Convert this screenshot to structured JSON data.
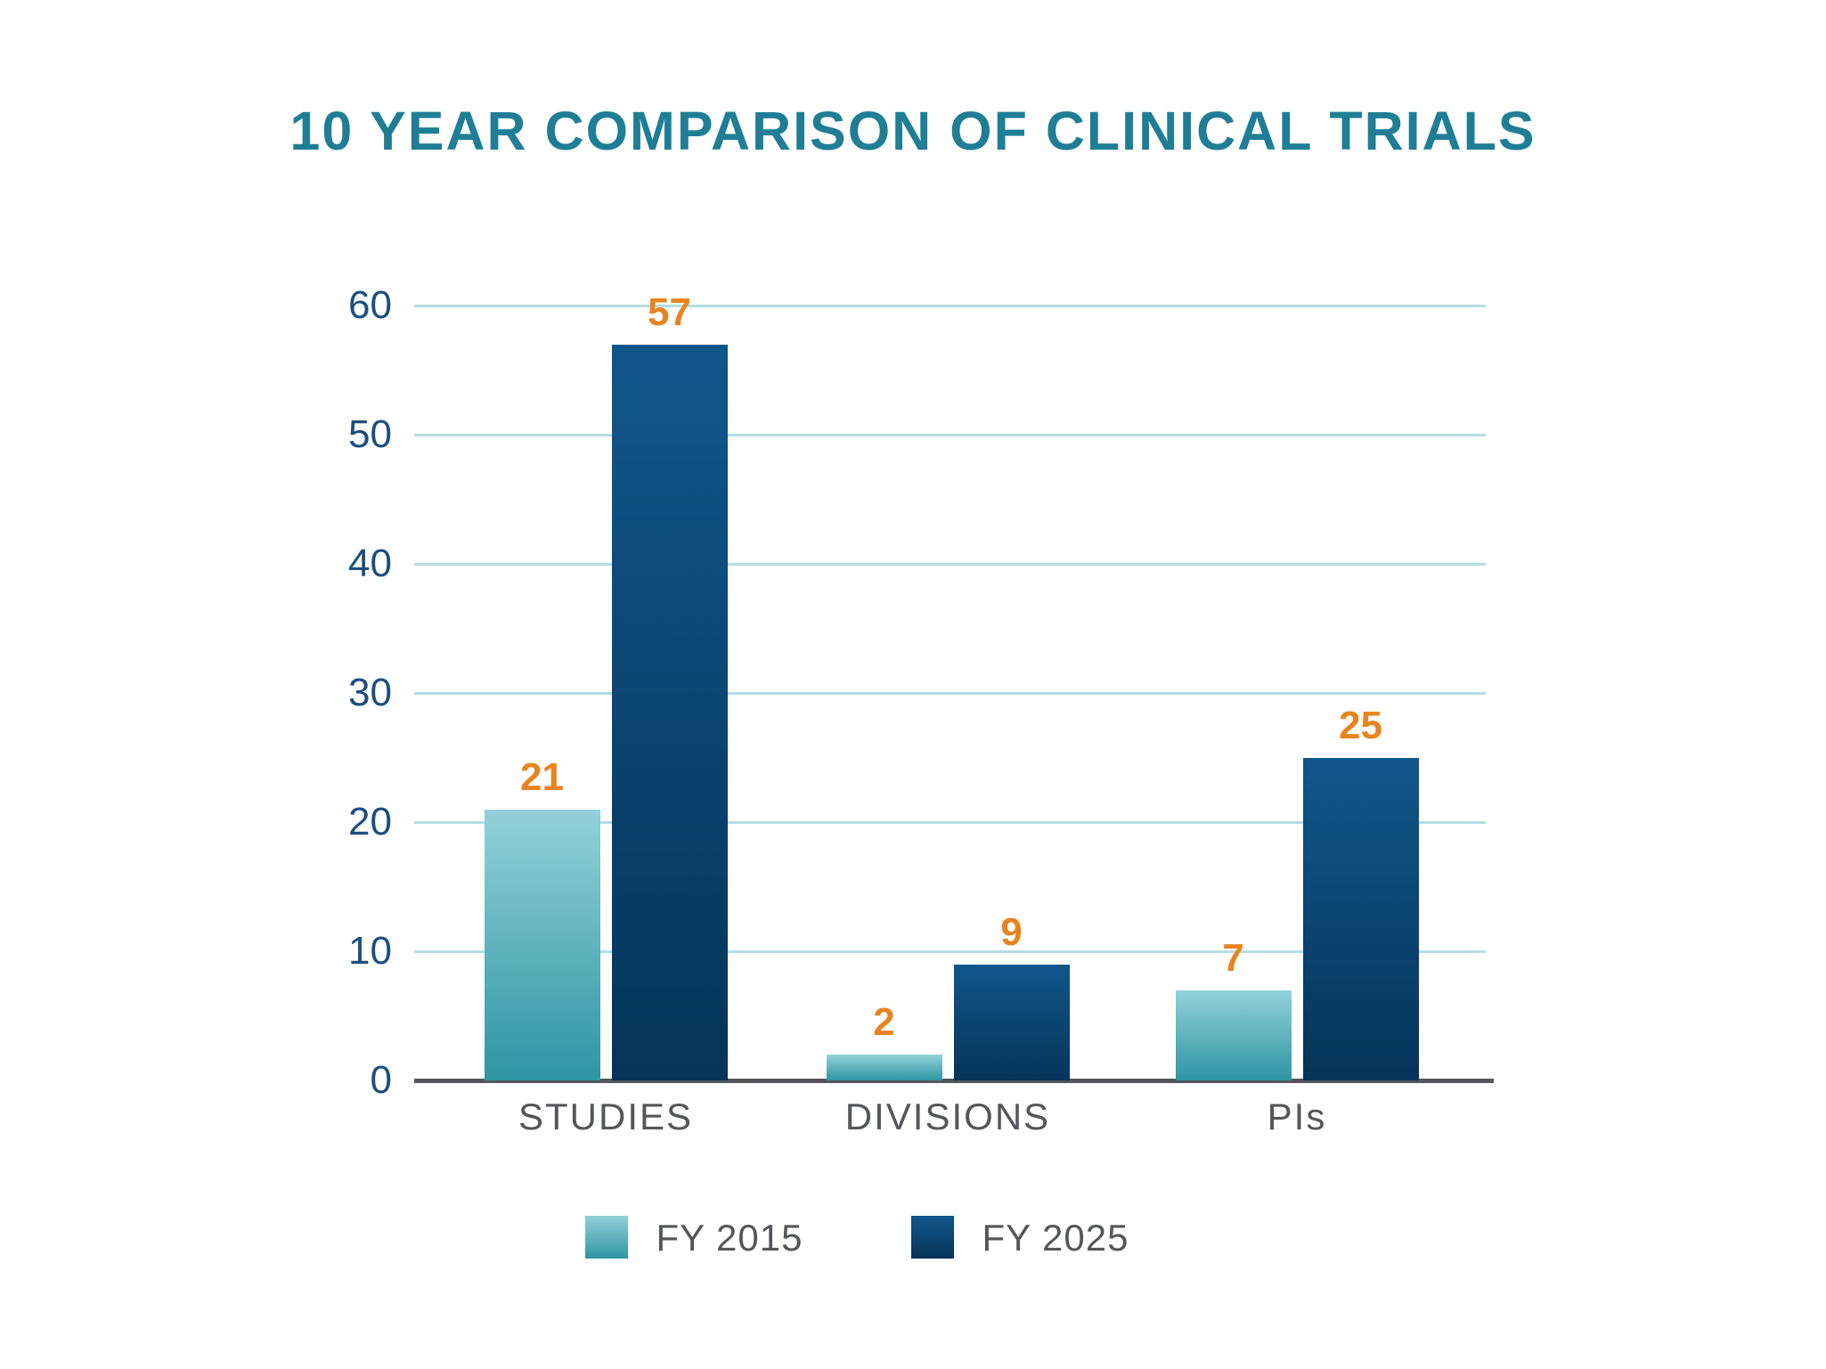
{
  "title": "10 YEAR COMPARISON OF CLINICAL TRIALS",
  "colors": {
    "title_teal": "#1f7e95",
    "value_orange": "#e8841f",
    "tick_blue": "#1b4e80",
    "gridline_blue": "#b5dde4",
    "axis_gray": "#55565a",
    "text_gray": "#55565a",
    "fy2015_top": "#93d1d9",
    "fy2015_bottom": "#2e95a3",
    "fy2025_top": "#11568b",
    "fy2025_bottom": "#053459",
    "background": "#ffffff"
  },
  "chart_data": {
    "type": "bar",
    "title": "10 YEAR COMPARISON OF CLINICAL TRIALS",
    "categories": [
      "STUDIES",
      "DIVISIONS",
      "PIs"
    ],
    "series": [
      {
        "name": "FY 2015",
        "values": [
          21,
          2,
          7
        ]
      },
      {
        "name": "FY 2025",
        "values": [
          57,
          9,
          25
        ]
      }
    ],
    "xlabel": "",
    "ylabel": "",
    "ylim": [
      0,
      60
    ],
    "yticks": [
      0,
      10,
      20,
      30,
      40,
      50,
      60
    ],
    "grid": true,
    "legend_position": "bottom"
  }
}
